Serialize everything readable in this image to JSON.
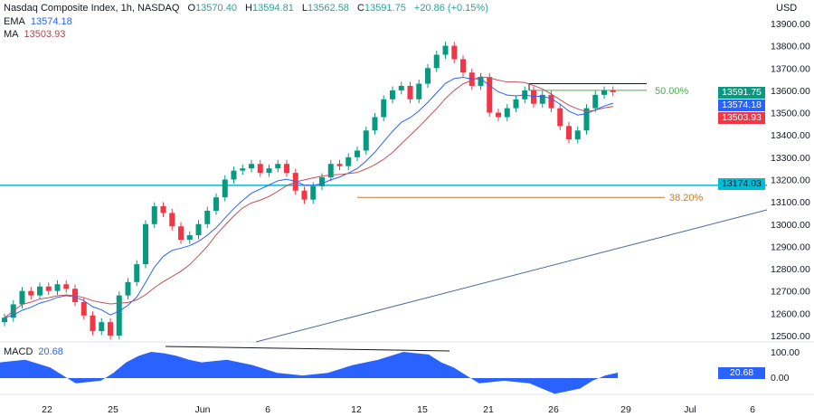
{
  "header": {
    "title": "Nasdaq Composite Index, 1h, NASDAQ",
    "o_label": "O",
    "o": "13570.40",
    "h_label": "H",
    "h": "13594.81",
    "l_label": "L",
    "l": "13562.58",
    "c_label": "C",
    "c": "13591.75",
    "change": "+20.86 (+0.15%)"
  },
  "ema": {
    "label": "EMA",
    "value": "13574.18",
    "color": "#2962ff"
  },
  "ma": {
    "label": "MA",
    "value": "13503.93",
    "color": "#f23645"
  },
  "currency": "USD",
  "price_tag": {
    "value": "13591.75",
    "color": "#089981"
  },
  "level_tag": {
    "value": "13174.03",
    "color": "#00bcd4"
  },
  "macd": {
    "label": "MACD",
    "value": "20.68",
    "color": "#2962ff",
    "axis_ticks": [
      "100.00",
      "0.00"
    ]
  },
  "fib": {
    "f50": "50.00%",
    "f382": "38.20%"
  },
  "chart_data": {
    "type": "candlestick",
    "ylim": [
      12500,
      13900
    ],
    "y_ticks": [
      "13900.00",
      "13800.00",
      "13700.00",
      "13600.00",
      "13500.00",
      "13400.00",
      "13300.00",
      "13200.00",
      "13100.00",
      "13000.00",
      "12900.00",
      "12800.00",
      "12700.00",
      "12600.00",
      "12500.00"
    ],
    "x_ticks": [
      "22",
      "25",
      "Jun",
      "6",
      "12",
      "15",
      "21",
      "26",
      "29",
      "Jul",
      "6"
    ],
    "closes": [
      12580,
      12640,
      12700,
      12680,
      12720,
      12700,
      12730,
      12710,
      12650,
      12590,
      12520,
      12560,
      12500,
      12680,
      12740,
      12820,
      13000,
      13080,
      13050,
      12990,
      12930,
      12950,
      13000,
      13060,
      13120,
      13200,
      13240,
      13250,
      13270,
      13230,
      13250,
      13270,
      13230,
      13150,
      13110,
      13170,
      13210,
      13270,
      13260,
      13300,
      13330,
      13420,
      13480,
      13560,
      13600,
      13620,
      13560,
      13630,
      13700,
      13760,
      13800,
      13740,
      13680,
      13620,
      13660,
      13500,
      13480,
      13520,
      13560,
      13600,
      13540,
      13580,
      13520,
      13440,
      13380,
      13420,
      13520,
      13580,
      13600,
      13592
    ],
    "macd_values": [
      60,
      65,
      70,
      55,
      40,
      10,
      -20,
      -15,
      -10,
      20,
      60,
      85,
      100,
      95,
      85,
      70,
      60,
      65,
      70,
      60,
      50,
      35,
      20,
      15,
      10,
      15,
      20,
      35,
      50,
      60,
      70,
      85,
      100,
      95,
      90,
      60,
      40,
      10,
      -20,
      -15,
      -10,
      -15,
      -20,
      -40,
      -60,
      -50,
      -40,
      -10,
      10,
      20.68
    ],
    "support_level": 13174.03,
    "fib_382_price": 13120,
    "fib_50_price": 13600,
    "resistance_price": 13630
  }
}
